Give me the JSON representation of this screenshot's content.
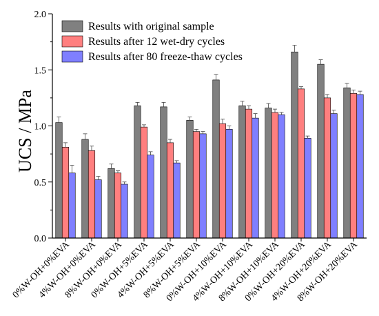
{
  "chart_data": {
    "type": "bar",
    "title": "",
    "xlabel": "",
    "ylabel": "UCS / MPa",
    "ylim": [
      0,
      2.0
    ],
    "yticks": [
      "0.0",
      "0.5",
      "1.0",
      "1.5",
      "2.0"
    ],
    "grid": false,
    "legend_position": "top-left",
    "categories": [
      "0%W-OH+0%EVA",
      "4%W-OH+0%EVA",
      "8%W-OH+0%EVA",
      "0%W-OH+5%EVA",
      "4%W-OH+5%EVA",
      "8%W-OH+5%EVA",
      "0%W-OH+10%EVA",
      "4%W-OH+10%EVA",
      "8%W-OH+10%EVA",
      "0%W-OH+20%EVA",
      "4%W-OH+20%EVA",
      "8%W-OH+20%EVA"
    ],
    "series": [
      {
        "name": "Results with original sample",
        "color": "#808080",
        "values": [
          1.03,
          0.88,
          0.62,
          1.18,
          1.17,
          1.05,
          1.41,
          1.18,
          1.16,
          1.66,
          1.55,
          1.34
        ],
        "errors": [
          0.05,
          0.05,
          0.04,
          0.03,
          0.04,
          0.03,
          0.05,
          0.04,
          0.04,
          0.06,
          0.04,
          0.04
        ]
      },
      {
        "name": "Results after 12 wet-dry cycles",
        "color": "#ff7f7f",
        "values": [
          0.81,
          0.78,
          0.58,
          0.99,
          0.85,
          0.95,
          1.02,
          1.15,
          1.12,
          1.33,
          1.25,
          1.29
        ],
        "errors": [
          0.04,
          0.04,
          0.02,
          0.02,
          0.03,
          0.02,
          0.04,
          0.03,
          0.03,
          0.02,
          0.03,
          0.03
        ]
      },
      {
        "name": "Results after 80 freeze-thaw cycles",
        "color": "#7f7fff",
        "values": [
          0.58,
          0.52,
          0.48,
          0.74,
          0.67,
          0.93,
          0.97,
          1.07,
          1.1,
          0.89,
          1.11,
          1.28
        ],
        "errors": [
          0.07,
          0.03,
          0.02,
          0.03,
          0.02,
          0.02,
          0.03,
          0.04,
          0.02,
          0.02,
          0.03,
          0.03
        ]
      }
    ]
  }
}
